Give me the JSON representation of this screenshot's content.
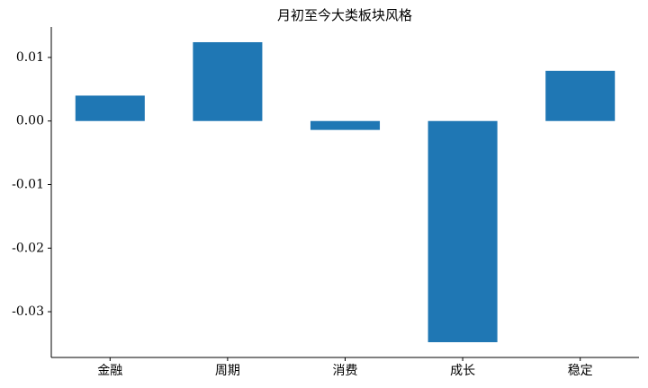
{
  "chart_data": {
    "type": "bar",
    "title": "月初至今大类板块风格",
    "categories": [
      "金融",
      "周期",
      "消费",
      "成长",
      "稳定"
    ],
    "values": [
      0.004,
      0.0124,
      -0.0014,
      -0.0348,
      0.0079
    ],
    "color": "#1f77b4",
    "ylim": [
      -0.0372,
      0.0148
    ],
    "yticks": [
      -0.03,
      -0.02,
      -0.01,
      {
        "value": 0,
        "label": "0.00"
      },
      0.01
    ],
    "grid": false
  }
}
